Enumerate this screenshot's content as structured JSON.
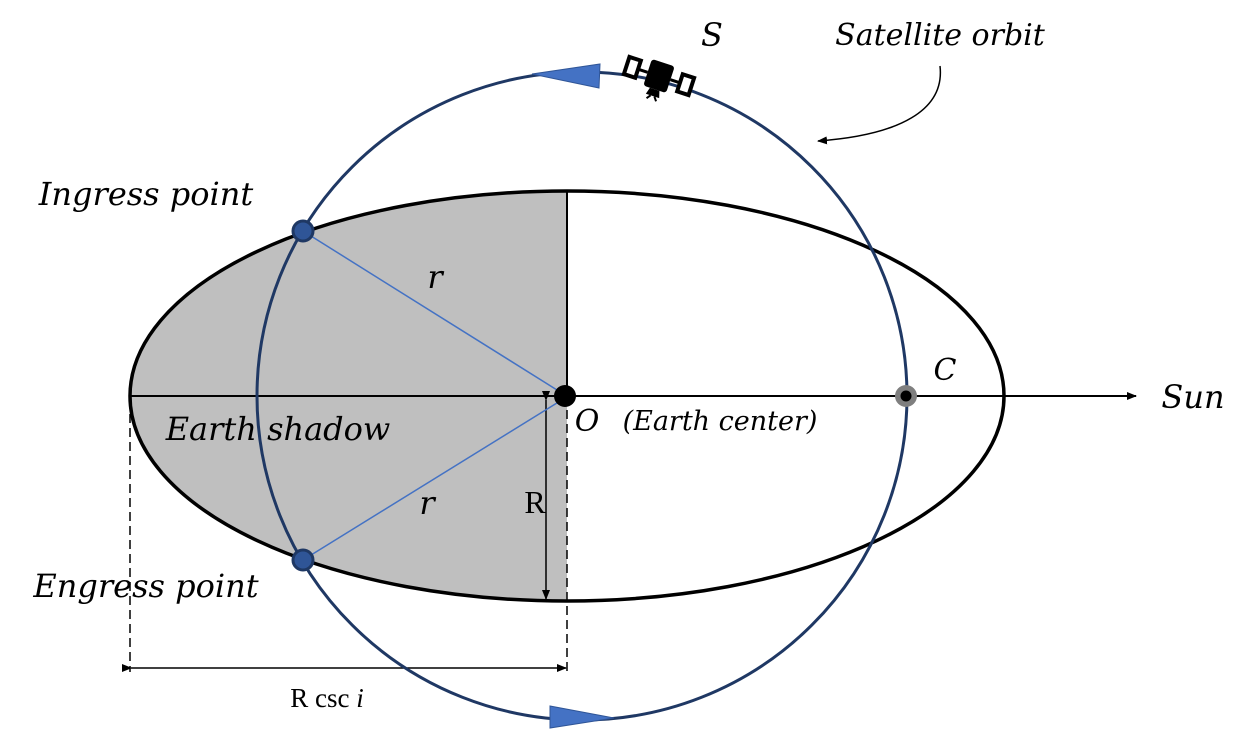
{
  "labels": {
    "satellite": "S",
    "orbit": "Satellite orbit",
    "ingress": "Ingress point",
    "engress": "Engress point",
    "radius_upper": "r",
    "radius_lower": "r",
    "shadow": "Earth shadow",
    "center_letter": "O",
    "center_desc": "(Earth center)",
    "point_c": "C",
    "sun": "Sun",
    "earth_radius": "R",
    "projection_prefix": "R csc ",
    "projection_var": "i"
  },
  "colors": {
    "orbit_stroke": "#1f3864",
    "direction_arrow": "#4472c4",
    "radius_line": "#4472c4",
    "shadow_fill": "#bfbfbf",
    "point_fill": "#2f5597",
    "satellite": "#000000"
  },
  "icons": {
    "satellite": "satellite-icon"
  }
}
